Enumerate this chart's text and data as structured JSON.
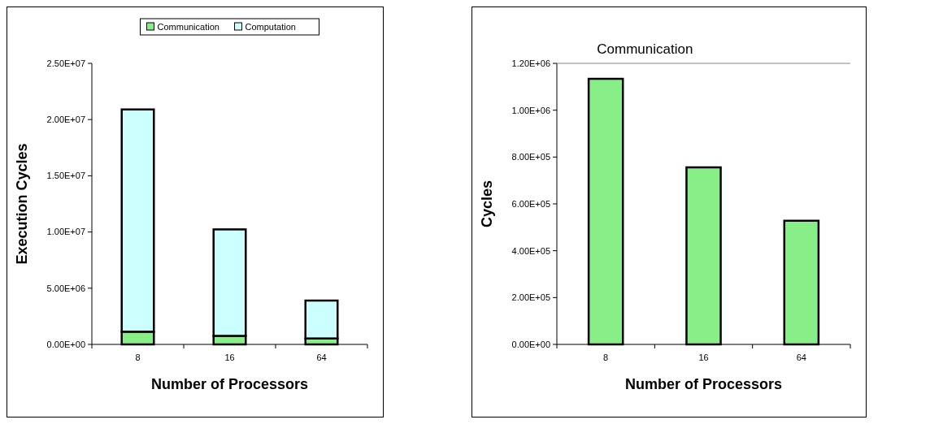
{
  "chart_data": [
    {
      "type": "bar",
      "stacked": true,
      "categories": [
        "8",
        "16",
        "64"
      ],
      "xlabel": "Number of Processors",
      "ylabel": "Execution Cycles",
      "series": [
        {
          "name": "Communication",
          "color": "#88ee88",
          "values": [
            1130000,
            760000,
            530000
          ]
        },
        {
          "name": "Computation",
          "color": "#ccffff",
          "values": [
            19770000,
            9470000,
            3370000
          ]
        }
      ],
      "ylim": [
        0,
        25000000
      ],
      "yticks": [
        {
          "value": 0,
          "label": "0.00E+00"
        },
        {
          "value": 5000000,
          "label": "5.00E+06"
        },
        {
          "value": 10000000,
          "label": "1.00E+07"
        },
        {
          "value": 15000000,
          "label": "1.50E+07"
        },
        {
          "value": 20000000,
          "label": "2.00E+07"
        },
        {
          "value": 25000000,
          "label": "2.50E+07"
        }
      ],
      "legend": "top",
      "grid": false
    },
    {
      "type": "bar",
      "title": "Communication",
      "categories": [
        "8",
        "16",
        "64"
      ],
      "xlabel": "Number of Processors",
      "ylabel": "Cycles",
      "series": [
        {
          "color": "#88ee88",
          "values": [
            1134000,
            756000,
            528000
          ]
        }
      ],
      "ylim": [
        0,
        1200000
      ],
      "yticks": [
        {
          "value": 0,
          "label": "0.00E+00"
        },
        {
          "value": 200000,
          "label": "2.00E+05"
        },
        {
          "value": 400000,
          "label": "4.00E+05"
        },
        {
          "value": 600000,
          "label": "6.00E+05"
        },
        {
          "value": 800000,
          "label": "8.00E+05"
        },
        {
          "value": 1000000,
          "label": "1.00E+06"
        },
        {
          "value": 1200000,
          "label": "1.20E+06"
        }
      ],
      "legend": false,
      "grid": false
    }
  ]
}
